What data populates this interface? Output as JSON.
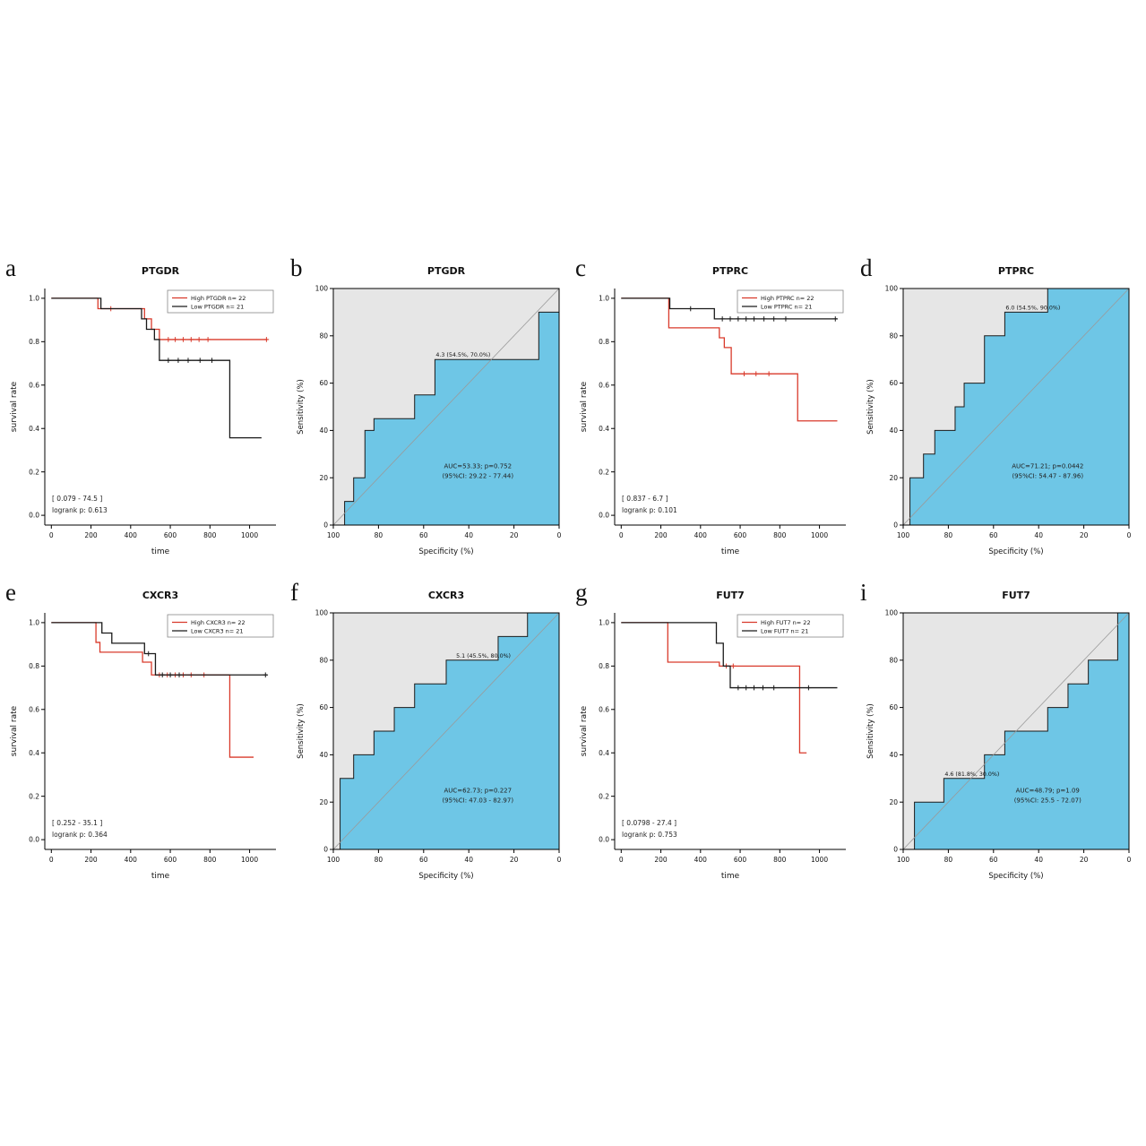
{
  "page": {
    "background": "#ffffff"
  },
  "colors": {
    "km_high": "#d93a2b",
    "km_low": "#1a1a1a",
    "roc_fill": "#6ec6e6",
    "roc_bg": "#e6e6e6"
  },
  "chart_data": [
    {
      "panel_letter": "a",
      "type": "line",
      "kind": "kaplan_meier",
      "title": "PTGDR",
      "xlabel": "time",
      "ylabel": "survival rate",
      "xlim": [
        0,
        1100
      ],
      "ylim": [
        0.0,
        1.0
      ],
      "xticks": [
        0,
        200,
        400,
        600,
        800,
        1000
      ],
      "yticks": [
        "0.0",
        "0.2",
        "0.4",
        "0.6",
        "0.8",
        "1.0"
      ],
      "legend": [
        {
          "label": "High PTGDR  n= 22",
          "color": "#d93a2b"
        },
        {
          "label": "Low PTGDR   n= 21",
          "color": "#1a1a1a"
        }
      ],
      "annotations": [
        "[ 0.079  -   74.5 ]",
        "logrank p:  0.613"
      ],
      "series": [
        {
          "name": "High PTGDR",
          "color": "#d93a2b",
          "steps": [
            [
              0,
              1.0
            ],
            [
              235,
              1.0
            ],
            [
              235,
              0.952
            ],
            [
              470,
              0.952
            ],
            [
              470,
              0.905
            ],
            [
              505,
              0.905
            ],
            [
              505,
              0.857
            ],
            [
              545,
              0.857
            ],
            [
              545,
              0.81
            ],
            [
              1090,
              0.81
            ]
          ],
          "censors": [
            [
              300,
              0.952
            ],
            [
              590,
              0.81
            ],
            [
              625,
              0.81
            ],
            [
              665,
              0.81
            ],
            [
              705,
              0.81
            ],
            [
              745,
              0.81
            ],
            [
              790,
              0.81
            ],
            [
              1085,
              0.81
            ]
          ]
        },
        {
          "name": "Low PTGDR",
          "color": "#1a1a1a",
          "steps": [
            [
              0,
              1.0
            ],
            [
              250,
              1.0
            ],
            [
              250,
              0.952
            ],
            [
              455,
              0.952
            ],
            [
              455,
              0.905
            ],
            [
              480,
              0.905
            ],
            [
              480,
              0.857
            ],
            [
              520,
              0.857
            ],
            [
              520,
              0.81
            ],
            [
              545,
              0.81
            ],
            [
              545,
              0.714
            ],
            [
              900,
              0.714
            ],
            [
              900,
              0.357
            ],
            [
              1060,
              0.357
            ]
          ],
          "censors": [
            [
              590,
              0.714
            ],
            [
              640,
              0.714
            ],
            [
              690,
              0.714
            ],
            [
              750,
              0.714
            ],
            [
              810,
              0.714
            ]
          ]
        }
      ]
    },
    {
      "panel_letter": "b",
      "type": "area",
      "kind": "roc",
      "title": "PTGDR",
      "xlabel": "Specificity (%)",
      "ylabel": "Sensitivity (%)",
      "x_reversed": true,
      "xticks": [
        100,
        80,
        60,
        40,
        20,
        0
      ],
      "yticks": [
        0,
        20,
        40,
        60,
        80,
        100
      ],
      "cutpoint": {
        "label": "4.3 (54.5%, 70.0%)",
        "x": 55,
        "y": 70
      },
      "auc_lines": [
        "AUC=53.33;   p=0.752",
        "(95%CI: 29.22 - 77.44)"
      ],
      "colors": {
        "bg": "#e6e6e6",
        "fill": "#6ec6e6"
      },
      "roc_points": [
        [
          100,
          0
        ],
        [
          95,
          0
        ],
        [
          95,
          10
        ],
        [
          91,
          10
        ],
        [
          91,
          20
        ],
        [
          86,
          20
        ],
        [
          86,
          40
        ],
        [
          82,
          40
        ],
        [
          82,
          45
        ],
        [
          64,
          45
        ],
        [
          64,
          55
        ],
        [
          55,
          55
        ],
        [
          55,
          70
        ],
        [
          9,
          70
        ],
        [
          9,
          90
        ],
        [
          0,
          90
        ],
        [
          0,
          100
        ]
      ]
    },
    {
      "panel_letter": "c",
      "type": "line",
      "kind": "kaplan_meier",
      "title": "PTPRC",
      "xlabel": "time",
      "ylabel": "survival rate",
      "xlim": [
        0,
        1100
      ],
      "ylim": [
        0.0,
        1.0
      ],
      "xticks": [
        0,
        200,
        400,
        600,
        800,
        1000
      ],
      "yticks": [
        "0.0",
        "0.2",
        "0.4",
        "0.6",
        "0.8",
        "1.0"
      ],
      "legend": [
        {
          "label": "High PTPRC  n= 22",
          "color": "#d93a2b"
        },
        {
          "label": "Low PTPRC   n= 21",
          "color": "#1a1a1a"
        }
      ],
      "annotations": [
        "[ 0.837  -   6.7 ]",
        "logrank p:  0.101"
      ],
      "series": [
        {
          "name": "High PTPRC",
          "color": "#d93a2b",
          "steps": [
            [
              0,
              1.0
            ],
            [
              240,
              1.0
            ],
            [
              240,
              0.864
            ],
            [
              495,
              0.864
            ],
            [
              495,
              0.818
            ],
            [
              520,
              0.818
            ],
            [
              520,
              0.773
            ],
            [
              555,
              0.773
            ],
            [
              555,
              0.652
            ],
            [
              890,
              0.652
            ],
            [
              890,
              0.435
            ],
            [
              1090,
              0.435
            ]
          ],
          "censors": [
            [
              620,
              0.652
            ],
            [
              680,
              0.652
            ],
            [
              745,
              0.652
            ]
          ]
        },
        {
          "name": "Low PTPRC",
          "color": "#1a1a1a",
          "steps": [
            [
              0,
              1.0
            ],
            [
              245,
              1.0
            ],
            [
              245,
              0.952
            ],
            [
              470,
              0.952
            ],
            [
              470,
              0.905
            ],
            [
              1090,
              0.905
            ]
          ],
          "censors": [
            [
              350,
              0.952
            ],
            [
              510,
              0.905
            ],
            [
              550,
              0.905
            ],
            [
              590,
              0.905
            ],
            [
              630,
              0.905
            ],
            [
              670,
              0.905
            ],
            [
              720,
              0.905
            ],
            [
              770,
              0.905
            ],
            [
              830,
              0.905
            ],
            [
              1080,
              0.905
            ]
          ]
        }
      ]
    },
    {
      "panel_letter": "d",
      "type": "area",
      "kind": "roc",
      "title": "PTPRC",
      "xlabel": "Specificity (%)",
      "ylabel": "Sensitivity (%)",
      "x_reversed": true,
      "xticks": [
        100,
        80,
        60,
        40,
        20,
        0
      ],
      "yticks": [
        0,
        20,
        40,
        60,
        80,
        100
      ],
      "cutpoint": {
        "label": "6.0 (54.5%, 90.0%)",
        "x": 55,
        "y": 90
      },
      "auc_lines": [
        "AUC=71.21;   p=0.0442",
        "(95%CI: 54.47 - 87.96)"
      ],
      "colors": {
        "bg": "#e6e6e6",
        "fill": "#6ec6e6"
      },
      "roc_points": [
        [
          100,
          0
        ],
        [
          97,
          0
        ],
        [
          97,
          20
        ],
        [
          91,
          20
        ],
        [
          91,
          30
        ],
        [
          86,
          30
        ],
        [
          86,
          40
        ],
        [
          77,
          40
        ],
        [
          77,
          50
        ],
        [
          73,
          50
        ],
        [
          73,
          60
        ],
        [
          64,
          60
        ],
        [
          64,
          80
        ],
        [
          55,
          80
        ],
        [
          55,
          90
        ],
        [
          36,
          90
        ],
        [
          36,
          100
        ],
        [
          0,
          100
        ]
      ]
    },
    {
      "panel_letter": "e",
      "type": "line",
      "kind": "kaplan_meier",
      "title": "CXCR3",
      "xlabel": "time",
      "ylabel": "survival rate",
      "xlim": [
        0,
        1100
      ],
      "ylim": [
        0.0,
        1.0
      ],
      "xticks": [
        0,
        200,
        400,
        600,
        800,
        1000
      ],
      "yticks": [
        "0.0",
        "0.2",
        "0.4",
        "0.6",
        "0.8",
        "1.0"
      ],
      "legend": [
        {
          "label": "High CXCR3  n= 22",
          "color": "#d93a2b"
        },
        {
          "label": "Low CXCR3   n= 21",
          "color": "#1a1a1a"
        }
      ],
      "annotations": [
        "[ 0.252  -   35.1 ]",
        "logrank p:  0.364"
      ],
      "series": [
        {
          "name": "High CXCR3",
          "color": "#d93a2b",
          "steps": [
            [
              0,
              1.0
            ],
            [
              225,
              1.0
            ],
            [
              225,
              0.909
            ],
            [
              245,
              0.909
            ],
            [
              245,
              0.864
            ],
            [
              460,
              0.864
            ],
            [
              460,
              0.818
            ],
            [
              505,
              0.818
            ],
            [
              505,
              0.759
            ],
            [
              900,
              0.759
            ],
            [
              900,
              0.38
            ],
            [
              1020,
              0.38
            ]
          ],
          "censors": [
            [
              545,
              0.759
            ],
            [
              585,
              0.759
            ],
            [
              625,
              0.759
            ],
            [
              665,
              0.759
            ],
            [
              705,
              0.759
            ],
            [
              770,
              0.759
            ]
          ]
        },
        {
          "name": "Low CXCR3",
          "color": "#1a1a1a",
          "steps": [
            [
              0,
              1.0
            ],
            [
              255,
              1.0
            ],
            [
              255,
              0.952
            ],
            [
              305,
              0.952
            ],
            [
              305,
              0.905
            ],
            [
              470,
              0.905
            ],
            [
              470,
              0.857
            ],
            [
              525,
              0.857
            ],
            [
              525,
              0.759
            ],
            [
              1090,
              0.759
            ]
          ],
          "censors": [
            [
              490,
              0.857
            ],
            [
              560,
              0.759
            ],
            [
              600,
              0.759
            ],
            [
              645,
              0.759
            ],
            [
              1080,
              0.759
            ]
          ]
        }
      ]
    },
    {
      "panel_letter": "f",
      "type": "area",
      "kind": "roc",
      "title": "CXCR3",
      "xlabel": "Specificity (%)",
      "ylabel": "Sensitivity (%)",
      "x_reversed": true,
      "xticks": [
        100,
        80,
        60,
        40,
        20,
        0
      ],
      "yticks": [
        0,
        20,
        40,
        60,
        80,
        100
      ],
      "cutpoint": {
        "label": "5.1 (45.5%, 80.0%)",
        "x": 46,
        "y": 80
      },
      "auc_lines": [
        "AUC=62.73;   p=0.227",
        "(95%CI: 47.03 - 82.97)"
      ],
      "colors": {
        "bg": "#e6e6e6",
        "fill": "#6ec6e6"
      },
      "roc_points": [
        [
          100,
          0
        ],
        [
          97,
          0
        ],
        [
          97,
          30
        ],
        [
          91,
          30
        ],
        [
          91,
          40
        ],
        [
          82,
          40
        ],
        [
          82,
          50
        ],
        [
          73,
          50
        ],
        [
          73,
          60
        ],
        [
          64,
          60
        ],
        [
          64,
          70
        ],
        [
          50,
          70
        ],
        [
          50,
          80
        ],
        [
          27,
          80
        ],
        [
          27,
          90
        ],
        [
          14,
          90
        ],
        [
          14,
          100
        ],
        [
          0,
          100
        ]
      ]
    },
    {
      "panel_letter": "g",
      "type": "line",
      "kind": "kaplan_meier",
      "title": "FUT7",
      "xlabel": "time",
      "ylabel": "survival rate",
      "xlim": [
        0,
        1100
      ],
      "ylim": [
        0.0,
        1.0
      ],
      "xticks": [
        0,
        200,
        400,
        600,
        800,
        1000
      ],
      "yticks": [
        "0.0",
        "0.2",
        "0.4",
        "0.6",
        "0.8",
        "1.0"
      ],
      "legend": [
        {
          "label": "High FUT7   n= 22",
          "color": "#d93a2b"
        },
        {
          "label": "Low FUT7    n= 21",
          "color": "#1a1a1a"
        }
      ],
      "annotations": [
        "[ 0.0798  -   27.4 ]",
        "logrank p:  0.753"
      ],
      "series": [
        {
          "name": "High FUT7",
          "color": "#d93a2b",
          "steps": [
            [
              0,
              1.0
            ],
            [
              235,
              1.0
            ],
            [
              235,
              0.818
            ],
            [
              495,
              0.818
            ],
            [
              495,
              0.8
            ],
            [
              900,
              0.8
            ],
            [
              900,
              0.4
            ],
            [
              935,
              0.4
            ]
          ],
          "censors": [
            [
              530,
              0.8
            ],
            [
              565,
              0.8
            ]
          ]
        },
        {
          "name": "Low FUT7",
          "color": "#1a1a1a",
          "steps": [
            [
              0,
              1.0
            ],
            [
              480,
              1.0
            ],
            [
              480,
              0.905
            ],
            [
              515,
              0.905
            ],
            [
              515,
              0.8
            ],
            [
              550,
              0.8
            ],
            [
              550,
              0.7
            ],
            [
              1090,
              0.7
            ]
          ],
          "censors": [
            [
              590,
              0.7
            ],
            [
              630,
              0.7
            ],
            [
              670,
              0.7
            ],
            [
              715,
              0.7
            ],
            [
              770,
              0.7
            ],
            [
              945,
              0.7
            ]
          ]
        }
      ]
    },
    {
      "panel_letter": "i",
      "type": "area",
      "kind": "roc",
      "title": "FUT7",
      "xlabel": "Specificity (%)",
      "ylabel": "Sensitivity (%)",
      "x_reversed": true,
      "xticks": [
        100,
        80,
        60,
        40,
        20,
        0
      ],
      "yticks": [
        0,
        20,
        40,
        60,
        80,
        100
      ],
      "cutpoint": {
        "label": "4.6 (81.8%, 30.0%)",
        "x": 82,
        "y": 30
      },
      "auc_lines": [
        "AUC=48.79;   p=1.09",
        "(95%CI: 25.5 - 72.07)"
      ],
      "colors": {
        "bg": "#e6e6e6",
        "fill": "#6ec6e6"
      },
      "roc_points": [
        [
          100,
          0
        ],
        [
          95,
          0
        ],
        [
          95,
          20
        ],
        [
          82,
          20
        ],
        [
          82,
          30
        ],
        [
          64,
          30
        ],
        [
          64,
          40
        ],
        [
          55,
          40
        ],
        [
          55,
          50
        ],
        [
          36,
          50
        ],
        [
          36,
          60
        ],
        [
          27,
          60
        ],
        [
          27,
          70
        ],
        [
          18,
          70
        ],
        [
          18,
          80
        ],
        [
          5,
          80
        ],
        [
          5,
          100
        ],
        [
          0,
          100
        ]
      ]
    }
  ]
}
